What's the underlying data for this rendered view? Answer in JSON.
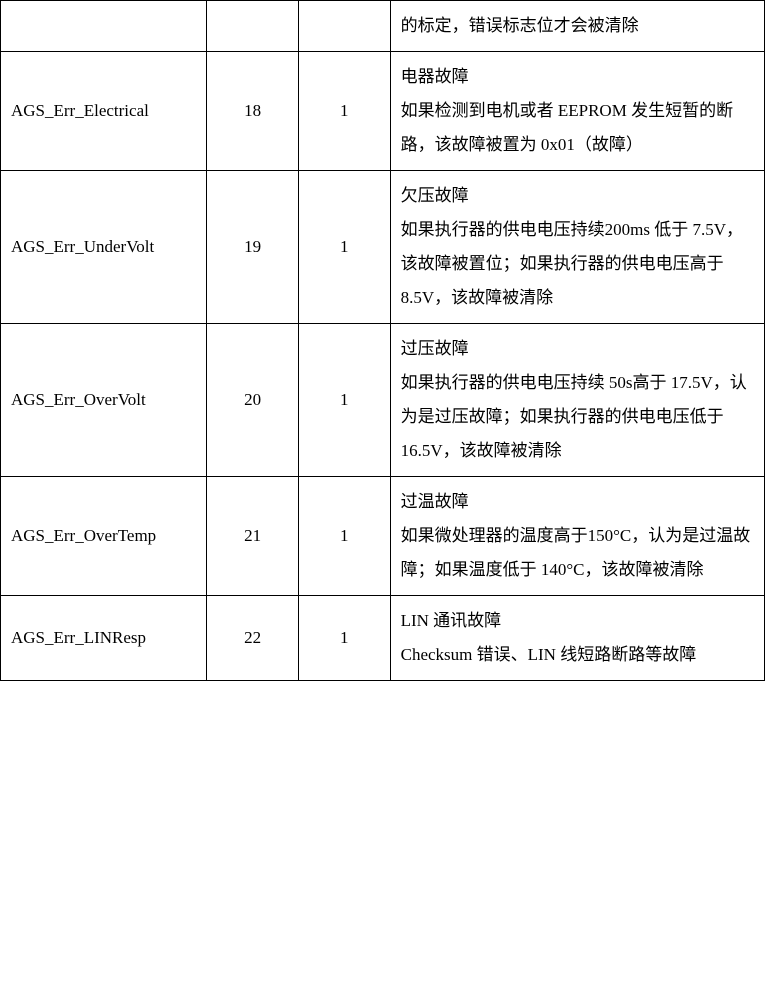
{
  "table": {
    "border_color": "#000000",
    "background_color": "#ffffff",
    "font_size": 17,
    "line_height": 2.0,
    "col_widths_percent": [
      27,
      12,
      12,
      49
    ],
    "rows": [
      {
        "code": "",
        "col2": "",
        "col3": "",
        "desc": "的标定，错误标志位才会被清除"
      },
      {
        "code": "AGS_Err_Electrical",
        "col2": "18",
        "col3": "1",
        "desc": "电器故障\n如果检测到电机或者 EEPROM 发生短暂的断路，该故障被置为 0x01（故障）"
      },
      {
        "code": "AGS_Err_UnderVolt",
        "col2": "19",
        "col3": "1",
        "desc": "欠压故障\n如果执行器的供电电压持续200ms 低于 7.5V，该故障被置位；如果执行器的供电电压高于8.5V，该故障被清除"
      },
      {
        "code": "AGS_Err_OverVolt",
        "col2": "20",
        "col3": "1",
        "desc": "过压故障\n如果执行器的供电电压持续 50s高于 17.5V，认为是过压故障；如果执行器的供电电压低于 16.5V，该故障被清除"
      },
      {
        "code": "AGS_Err_OverTemp",
        "col2": "21",
        "col3": "1",
        "desc": "过温故障\n如果微处理器的温度高于150°C，认为是过温故障；如果温度低于 140°C，该故障被清除"
      },
      {
        "code": "AGS_Err_LINResp",
        "col2": "22",
        "col3": "1",
        "desc": "LIN 通讯故障\nChecksum 错误、LIN 线短路断路等故障"
      }
    ]
  }
}
